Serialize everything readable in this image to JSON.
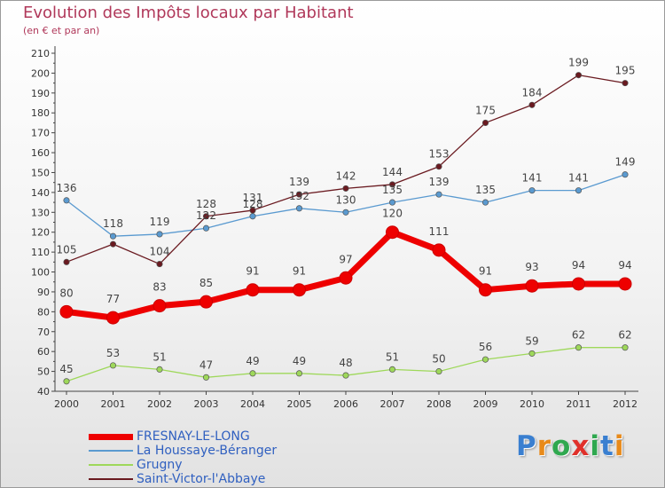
{
  "header": {
    "title": "Evolution des Impôts locaux par Habitant",
    "subtitle": "(en € et par an)"
  },
  "logo": {
    "text": "Proxiti",
    "colors": [
      "#3a7fd0",
      "#e88a1a",
      "#2fa84f",
      "#e0302a",
      "#2fa84f",
      "#3a7fd0",
      "#e88a1a"
    ]
  },
  "chart_data": {
    "type": "line",
    "x": [
      "2000",
      "2001",
      "2002",
      "2003",
      "2004",
      "2005",
      "2006",
      "2007",
      "2008",
      "2009",
      "2010",
      "2011",
      "2012"
    ],
    "ylim": [
      40,
      210
    ],
    "yticks": [
      40,
      50,
      60,
      70,
      80,
      90,
      100,
      110,
      120,
      130,
      140,
      150,
      160,
      170,
      180,
      190,
      200,
      210
    ],
    "grid": false,
    "legend_position": "bottom-left",
    "series": [
      {
        "name": "FRESNAY-LE-LONG",
        "color": "#ee0000",
        "values": [
          80,
          77,
          83,
          85,
          91,
          91,
          97,
          120,
          111,
          91,
          93,
          94,
          94
        ],
        "emphasis": true
      },
      {
        "name": "La Houssaye-Béranger",
        "color": "#5a9ad0",
        "values": [
          136,
          118,
          119,
          122,
          128,
          132,
          130,
          135,
          139,
          135,
          141,
          141,
          149
        ]
      },
      {
        "name": "Grugny",
        "color": "#9ed85a",
        "values": [
          45,
          53,
          51,
          47,
          49,
          49,
          48,
          51,
          50,
          56,
          59,
          62,
          62
        ]
      },
      {
        "name": "Saint-Victor-l'Abbaye",
        "color": "#6a1a20",
        "values": [
          105,
          114,
          104,
          128,
          131,
          139,
          142,
          144,
          153,
          175,
          184,
          199,
          195
        ]
      }
    ],
    "labels_shown": {
      "FRESNAY-LE-LONG": [
        80,
        77,
        83,
        85,
        91,
        91,
        97,
        120,
        111,
        91,
        93,
        94,
        94
      ],
      "La Houssaye-Béranger": [
        136,
        118,
        119,
        122,
        128,
        132,
        130,
        135,
        139,
        135,
        141,
        141,
        149
      ],
      "Grugny": [
        45,
        53,
        51,
        47,
        49,
        49,
        48,
        51,
        50,
        56,
        59,
        62,
        62
      ],
      "Saint-Victor-l'Abbaye": [
        105,
        null,
        104,
        128,
        131,
        139,
        142,
        144,
        153,
        175,
        184,
        199,
        195
      ]
    }
  }
}
